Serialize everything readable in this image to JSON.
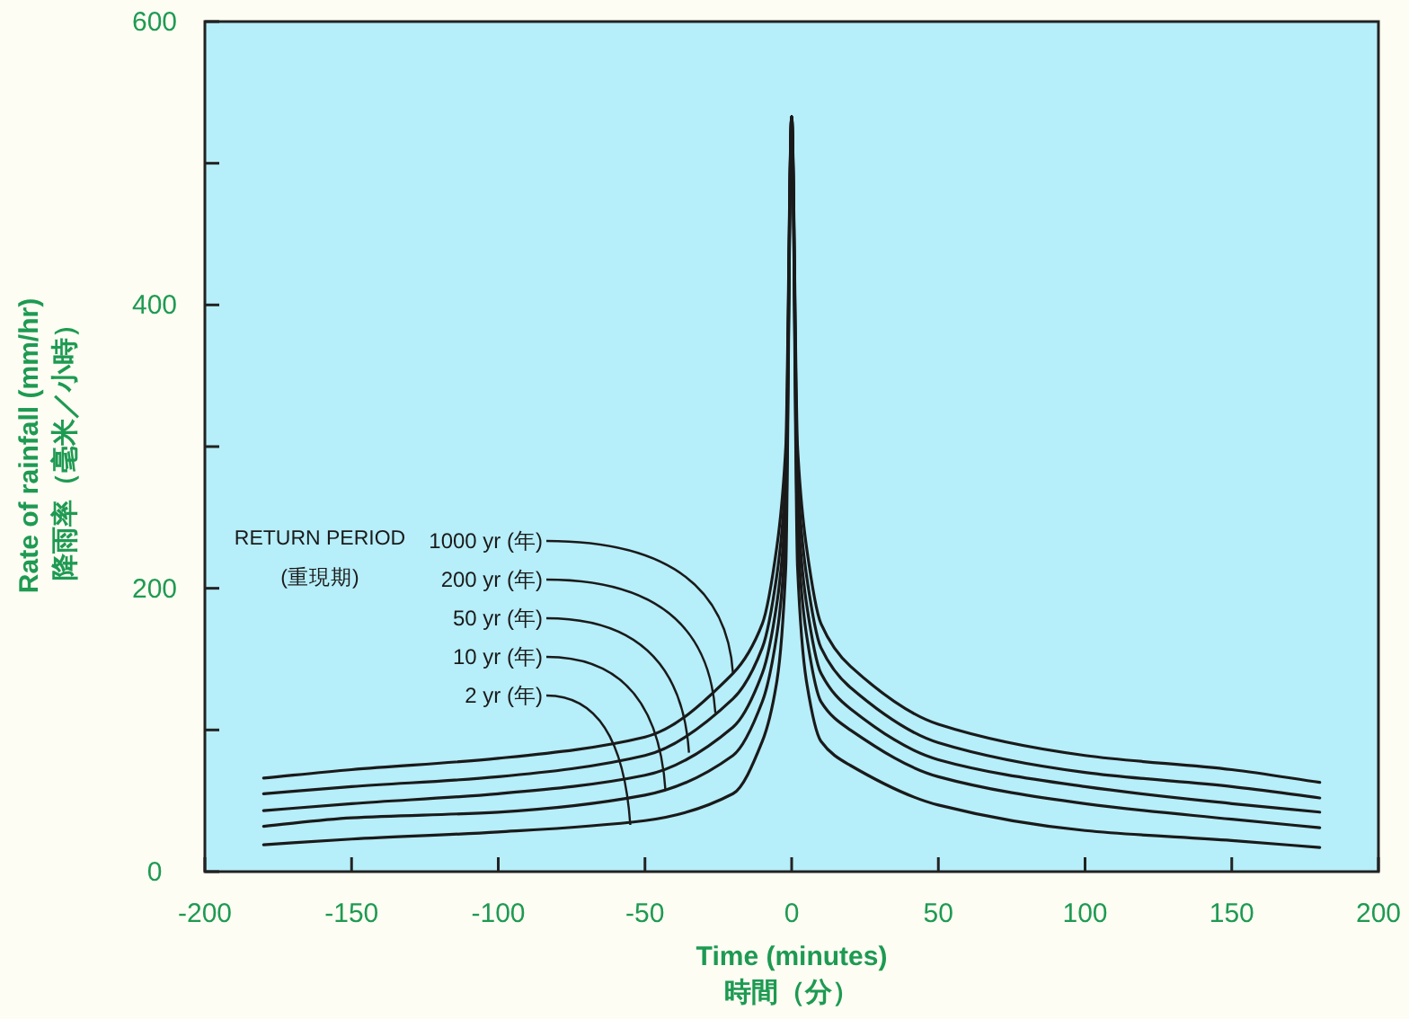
{
  "chart_data": {
    "type": "line",
    "xlabel": "Time (minutes)\n時間（分）",
    "ylabel": "Rate of rainfall (mm/hr)\n降雨率（毫米／小時）",
    "x": [
      -180,
      -150,
      -100,
      -50,
      -20,
      -10,
      -5,
      -2,
      0,
      2,
      5,
      10,
      20,
      50,
      100,
      150,
      180
    ],
    "series": [
      {
        "color": "#1a1a1a",
        "values": [
          66,
          72,
          80,
          95,
          140,
          175,
          230,
          300,
          533,
          300,
          230,
          175,
          145,
          104,
          82,
          72,
          63
        ]
      },
      {
        "color": "#1a1a1a",
        "values": [
          55,
          60,
          67,
          82,
          122,
          158,
          210,
          280,
          533,
          280,
          210,
          158,
          130,
          91,
          70,
          60,
          52
        ]
      },
      {
        "color": "#1a1a1a",
        "values": [
          43,
          48,
          55,
          68,
          102,
          140,
          190,
          260,
          533,
          260,
          190,
          140,
          115,
          79,
          60,
          48,
          42
        ]
      },
      {
        "color": "#1a1a1a",
        "values": [
          32,
          38,
          42,
          54,
          82,
          120,
          168,
          240,
          533,
          240,
          168,
          120,
          100,
          67,
          48,
          37,
          31
        ]
      },
      {
        "color": "#1a1a1a",
        "values": [
          19,
          23,
          28,
          36,
          55,
          92,
          135,
          215,
          533,
          215,
          135,
          92,
          75,
          47,
          29,
          22,
          17
        ]
      }
    ],
    "annotations": [
      "RETURN PERIOD\n(重現期)",
      {
        "text": "1000 yr (年)",
        "x": -20,
        "y": 140
      },
      {
        "text": "200 yr (年)",
        "x": -26,
        "y": 112
      },
      {
        "text": "50 yr (年)",
        "x": -35,
        "y": 84
      },
      {
        "text": "10 yr (年)",
        "x": -43,
        "y": 57
      },
      {
        "text": "2 yr (年)",
        "x": -55,
        "y": 33
      }
    ],
    "xlim": [
      -200,
      200
    ],
    "ylim": [
      0,
      600
    ],
    "xticks": [
      -200,
      -150,
      -100,
      -50,
      0,
      50,
      100,
      150,
      200
    ],
    "yticks": [
      0,
      {
        "value": 100,
        "label": null
      },
      200,
      {
        "value": 300,
        "label": null
      },
      400,
      {
        "value": 500,
        "label": null
      },
      600
    ],
    "grid": false,
    "marker": "none",
    "line_style": "solid"
  }
}
